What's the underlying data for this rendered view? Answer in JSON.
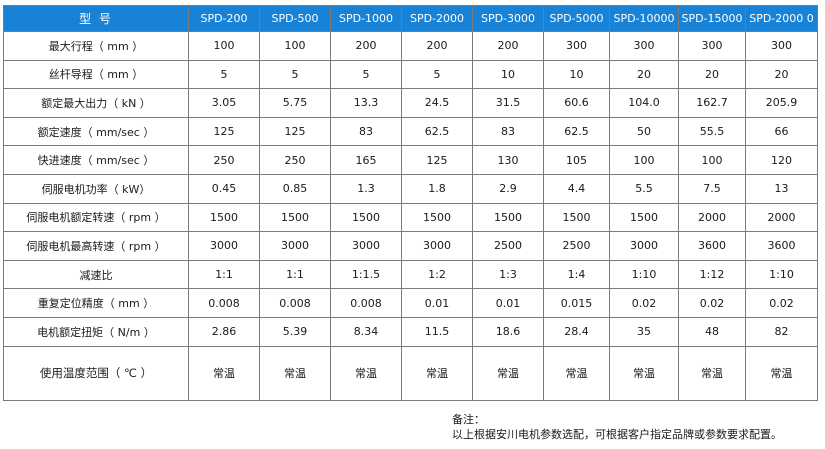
{
  "table": {
    "corner_label": "型  号",
    "models": [
      "SPD-200",
      "SPD-500",
      "SPD-1000",
      "SPD-2000",
      "SPD-3000",
      "SPD-5000",
      "SPD-10000",
      "SPD-15000",
      "SPD-2000 0"
    ],
    "rows": [
      {
        "label": "最大行程（ mm ）",
        "cells": [
          "100",
          "100",
          "200",
          "200",
          "200",
          "300",
          "300",
          "300",
          "300"
        ]
      },
      {
        "label": "丝杆导程（ mm ）",
        "cells": [
          "5",
          "5",
          "5",
          "5",
          "10",
          "10",
          "20",
          "20",
          "20"
        ]
      },
      {
        "label": "额定最大出力（ kN ）",
        "cells": [
          "3.05",
          "5.75",
          "13.3",
          "24.5",
          "31.5",
          "60.6",
          "104.0",
          "162.7",
          "205.9"
        ]
      },
      {
        "label": "额定速度（ mm/sec ）",
        "cells": [
          "125",
          "125",
          "83",
          "62.5",
          "83",
          "62.5",
          "50",
          "55.5",
          "66"
        ]
      },
      {
        "label": "快进速度（ mm/sec ）",
        "cells": [
          "250",
          "250",
          "165",
          "125",
          "130",
          "105",
          "100",
          "100",
          "120"
        ]
      },
      {
        "label": "伺服电机功率（ kW）",
        "cells": [
          "0.45",
          "0.85",
          "1.3",
          "1.8",
          "2.9",
          "4.4",
          "5.5",
          "7.5",
          "13"
        ]
      },
      {
        "label": "伺服电机额定转速（ rpm ）",
        "cells": [
          "1500",
          "1500",
          "1500",
          "1500",
          "1500",
          "1500",
          "1500",
          "2000",
          "2000"
        ]
      },
      {
        "label": "伺服电机最高转速（ rpm ）",
        "cells": [
          "3000",
          "3000",
          "3000",
          "3000",
          "2500",
          "2500",
          "3000",
          "3600",
          "3600"
        ]
      },
      {
        "label": "减速比",
        "cells": [
          "1:1",
          "1:1",
          "1:1.5",
          "1:2",
          "1:3",
          "1:4",
          "1:10",
          "1:12",
          "1:10"
        ]
      },
      {
        "label": "重复定位精度（ mm ）",
        "cells": [
          "0.008",
          "0.008",
          "0.008",
          "0.01",
          "0.01",
          "0.015",
          "0.02",
          "0.02",
          "0.02"
        ]
      },
      {
        "label": "电机额定扭矩（ N/m ）",
        "cells": [
          "2.86",
          "5.39",
          "8.34",
          "11.5",
          "18.6",
          "28.4",
          "35",
          "48",
          "82"
        ]
      },
      {
        "label": "使用温度范围（ ℃ ）",
        "cells": [
          "常温",
          "常温",
          "常温",
          "常温",
          "常温",
          "常温",
          "常温",
          "常温",
          "常温"
        ]
      }
    ]
  },
  "note": {
    "title": "备注：",
    "text": "以上根据安川电机参数选配，可根据客户指定品牌或参数要求配置。"
  }
}
